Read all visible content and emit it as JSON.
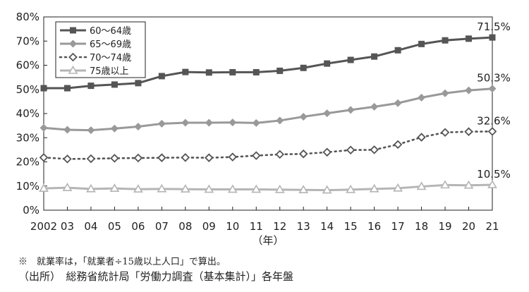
{
  "chart_data": {
    "type": "line",
    "x": [
      "2002",
      "03",
      "04",
      "05",
      "06",
      "07",
      "08",
      "09",
      "10",
      "11",
      "12",
      "13",
      "14",
      "15",
      "16",
      "17",
      "18",
      "19",
      "20",
      "21"
    ],
    "xunit": "（年）",
    "ylim": [
      0,
      80
    ],
    "yticks": [
      "0%",
      "10%",
      "20%",
      "30%",
      "40%",
      "50%",
      "60%",
      "70%",
      "80%"
    ],
    "grid": false,
    "legend_position": "top-left",
    "series": [
      {
        "name": "60～64歳",
        "color": "#555555",
        "marker": "square",
        "dash": "solid",
        "values": [
          50.5,
          50.5,
          51.5,
          52.0,
          52.6,
          55.5,
          57.2,
          57.0,
          57.1,
          57.1,
          57.7,
          58.9,
          60.7,
          62.2,
          63.6,
          66.2,
          68.8,
          70.3,
          71.0,
          71.5
        ],
        "end_label": "71.5%"
      },
      {
        "name": "65～69歳",
        "color": "#999999",
        "marker": "diamond",
        "dash": "solid",
        "values": [
          34.1,
          33.3,
          33.1,
          33.8,
          34.6,
          35.8,
          36.2,
          36.2,
          36.3,
          36.1,
          37.1,
          38.7,
          40.1,
          41.5,
          42.8,
          44.3,
          46.6,
          48.4,
          49.6,
          50.3
        ],
        "end_label": "50.3%"
      },
      {
        "name": "70～74歳",
        "color": "#555555",
        "marker": "open-diamond",
        "dash": "dotted",
        "values": [
          21.8,
          21.2,
          21.3,
          21.5,
          21.6,
          21.7,
          21.8,
          21.7,
          22.0,
          22.6,
          23.1,
          23.3,
          24.0,
          24.9,
          25.0,
          27.2,
          30.2,
          32.2,
          32.5,
          32.6
        ],
        "end_label": "32.6%"
      },
      {
        "name": "75歳以上",
        "color": "#b5b5b5",
        "marker": "open-triangle",
        "dash": "solid",
        "values": [
          9.0,
          9.3,
          8.8,
          9.0,
          8.7,
          8.8,
          8.7,
          8.6,
          8.6,
          8.6,
          8.5,
          8.4,
          8.3,
          8.5,
          8.8,
          9.1,
          9.8,
          10.4,
          10.3,
          10.5
        ],
        "end_label": "10.5%"
      }
    ]
  },
  "notes": {
    "note": "※　就業率は，「就業者÷15歳以上人口」で算出。",
    "source": "（出所）　総務省統計局「労働力調査（基本集計）」各年盤"
  }
}
